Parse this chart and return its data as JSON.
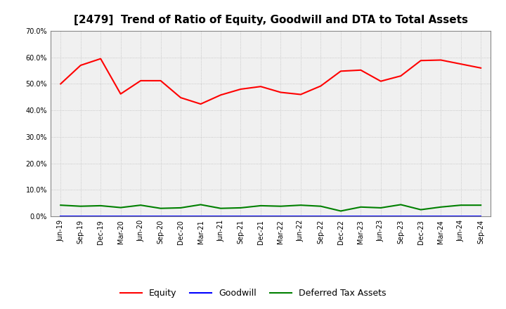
{
  "title": "[2479]  Trend of Ratio of Equity, Goodwill and DTA to Total Assets",
  "x_labels": [
    "Jun-19",
    "Sep-19",
    "Dec-19",
    "Mar-20",
    "Jun-20",
    "Sep-20",
    "Dec-20",
    "Mar-21",
    "Jun-21",
    "Sep-21",
    "Dec-21",
    "Mar-22",
    "Jun-22",
    "Sep-22",
    "Dec-22",
    "Mar-23",
    "Jun-23",
    "Sep-23",
    "Dec-23",
    "Mar-24",
    "Jun-24",
    "Sep-24"
  ],
  "equity": [
    0.5,
    0.57,
    0.595,
    0.462,
    0.512,
    0.512,
    0.448,
    0.424,
    0.458,
    0.48,
    0.49,
    0.468,
    0.46,
    0.492,
    0.548,
    0.552,
    0.51,
    0.53,
    0.588,
    0.59,
    0.575,
    0.56
  ],
  "goodwill": [
    0.0,
    0.0,
    0.0,
    0.0,
    0.0,
    0.0,
    0.0,
    0.0,
    0.0,
    0.0,
    0.0,
    0.0,
    0.0,
    0.0,
    0.0,
    0.0,
    0.0,
    0.0,
    0.0,
    0.0,
    0.0,
    0.0
  ],
  "dta": [
    0.042,
    0.038,
    0.04,
    0.033,
    0.042,
    0.03,
    0.032,
    0.044,
    0.03,
    0.032,
    0.04,
    0.038,
    0.042,
    0.038,
    0.02,
    0.035,
    0.032,
    0.044,
    0.025,
    0.035,
    0.042,
    0.042
  ],
  "equity_color": "#ff0000",
  "goodwill_color": "#0000ff",
  "dta_color": "#008000",
  "ylim": [
    0.0,
    0.7
  ],
  "yticks": [
    0.0,
    0.1,
    0.2,
    0.3,
    0.4,
    0.5,
    0.6,
    0.7
  ],
  "background_color": "#ffffff",
  "plot_bg_color": "#f0f0f0",
  "grid_color": "#bbbbbb",
  "title_fontsize": 11,
  "tick_fontsize": 7,
  "legend_labels": [
    "Equity",
    "Goodwill",
    "Deferred Tax Assets"
  ]
}
